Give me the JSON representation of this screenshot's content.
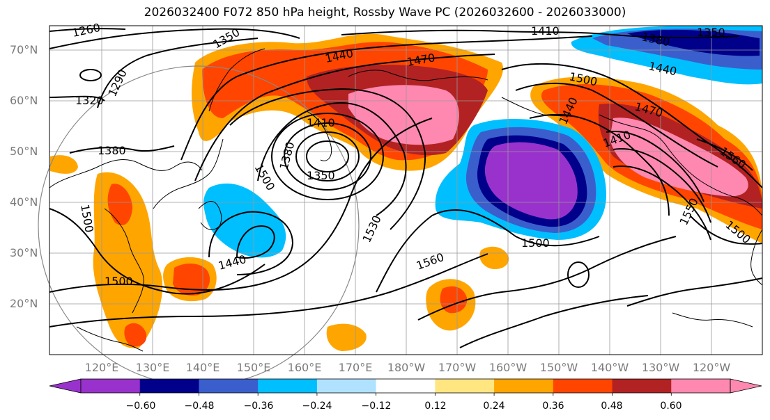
{
  "title": "2026032400 F072 850 hPa height, Rossby Wave PC (2026032600 - 2026033000)",
  "lat_labels": [
    "70°N",
    "60°N",
    "50°N",
    "40°N",
    "30°N",
    "20°N"
  ],
  "lon_labels": [
    "120°E",
    "130°E",
    "140°E",
    "150°E",
    "160°E",
    "170°E",
    "180°W",
    "170°W",
    "160°W",
    "150°W",
    "140°W",
    "130°W",
    "120°W"
  ],
  "contour_labels": [
    "1260",
    "1350",
    "1290",
    "1320",
    "1380",
    "1440",
    "1470",
    "1410",
    "1380",
    "1350",
    "1500",
    "1410",
    "1380",
    "1350",
    "1440",
    "1500",
    "1410",
    "1470",
    "1440",
    "1560",
    "1440",
    "1530",
    "1560",
    "1500",
    "1550",
    "1500",
    "1500",
    "1500"
  ],
  "colorbar": {
    "ticks": [
      "−0.60",
      "−0.48",
      "−0.36",
      "−0.24",
      "−0.12",
      "0.12",
      "0.24",
      "0.36",
      "0.48",
      "0.60"
    ],
    "colors": [
      "#9932cc",
      "#00008b",
      "#3a5fcd",
      "#00bfff",
      "#b0e2ff",
      "#ffffff",
      "#ffe680",
      "#ffa500",
      "#ff4500",
      "#b22222",
      "#ff88b0"
    ]
  },
  "colors": {
    "contour": "#000000",
    "grid": "#999999",
    "coast": "#000000",
    "axis_label": "#7a7a7a"
  }
}
